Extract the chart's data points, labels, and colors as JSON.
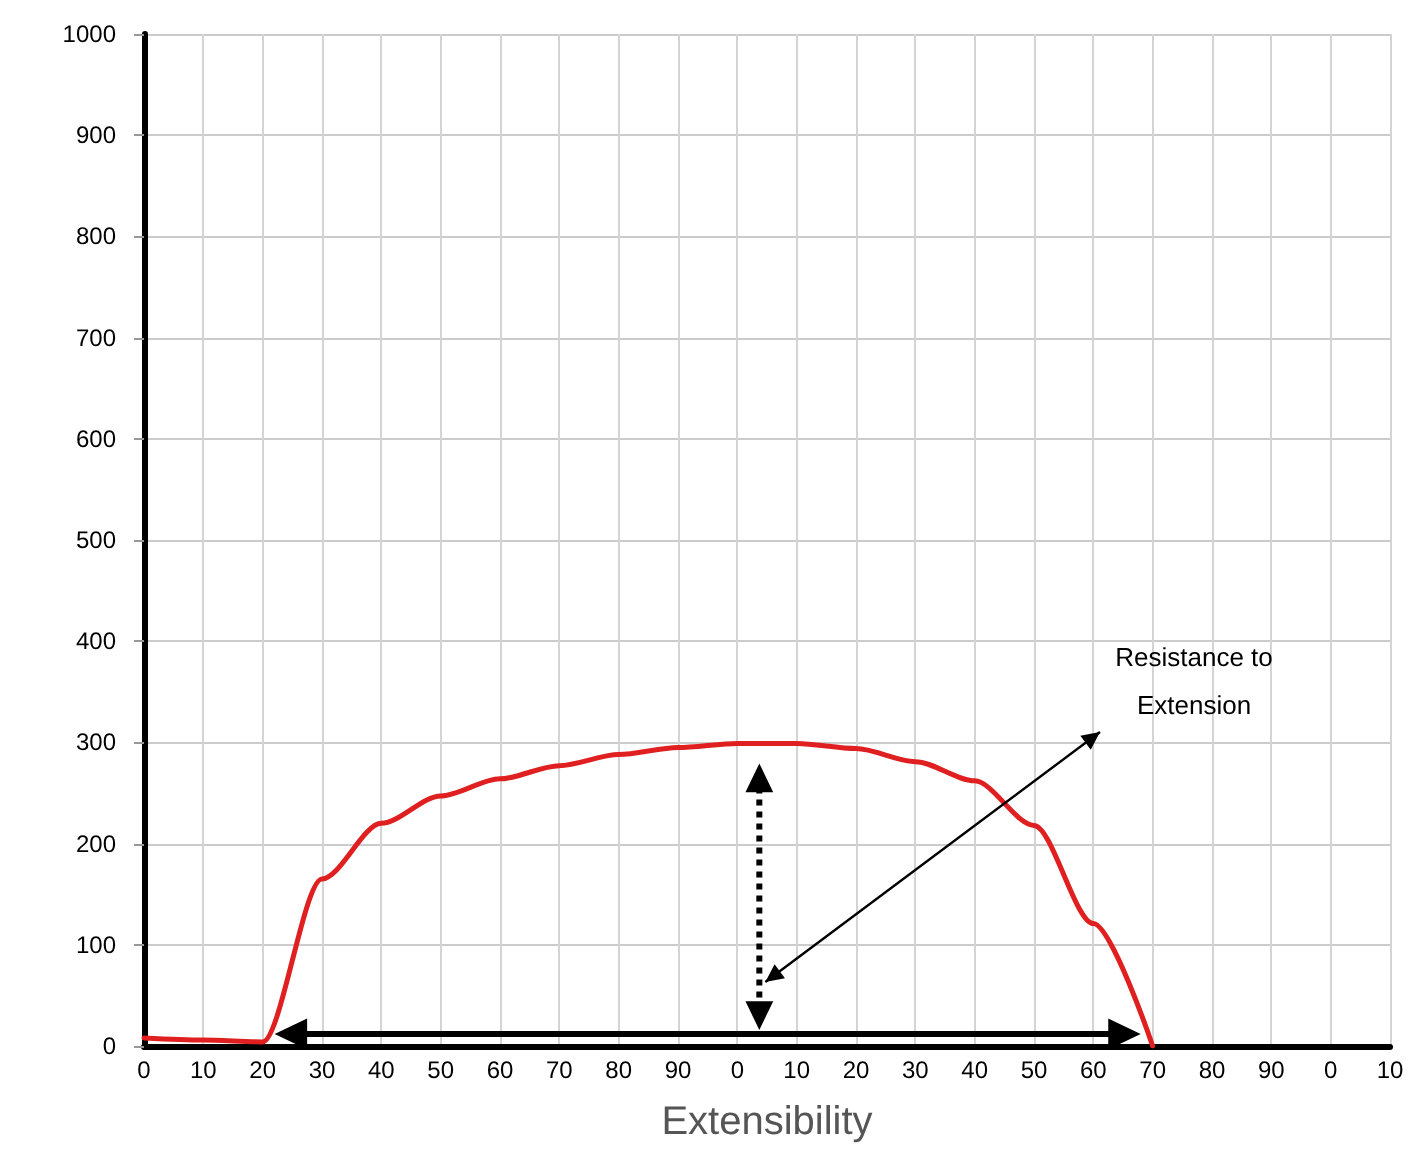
{
  "chart_data": {
    "type": "line",
    "xlabel": "Extensibility",
    "categories": [
      "0",
      "10",
      "20",
      "30",
      "40",
      "50",
      "60",
      "70",
      "80",
      "90",
      "0",
      "10",
      "20",
      "30",
      "40",
      "50",
      "60",
      "70",
      "80",
      "90",
      "0",
      "10"
    ],
    "series": [
      {
        "color": "#e02020",
        "values": [
          8,
          6,
          4,
          165,
          220,
          247,
          264,
          277,
          288,
          295,
          299,
          299,
          294,
          281,
          262,
          218,
          121,
          0,
          null,
          null,
          null,
          null
        ]
      }
    ],
    "ylim": [
      0,
      1000
    ],
    "yticks": [
      0,
      100,
      200,
      300,
      400,
      500,
      600,
      700,
      800,
      900,
      1000
    ],
    "grid": true,
    "marker": "none",
    "line_style": "solid",
    "annotations": [
      "Resistance to Extension"
    ]
  }
}
